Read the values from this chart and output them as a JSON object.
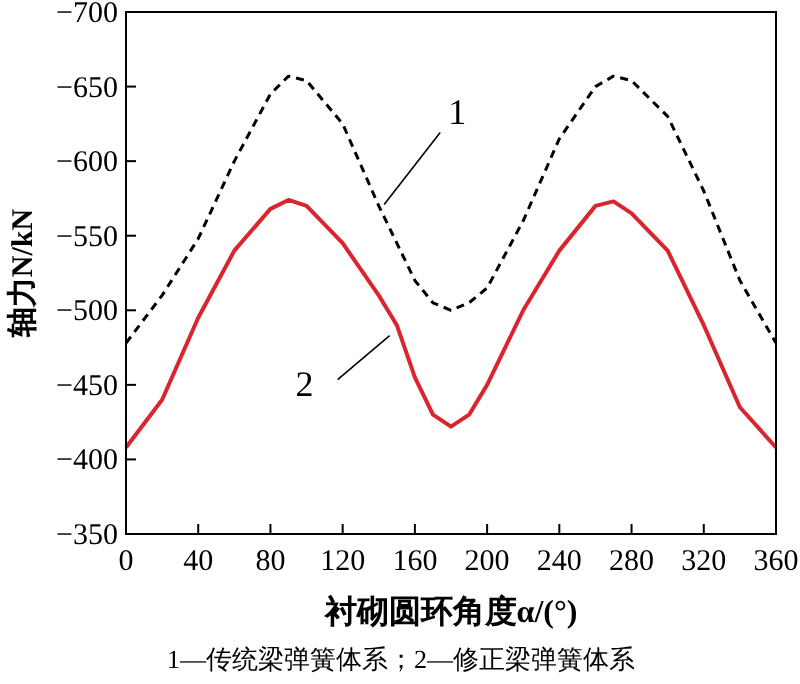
{
  "chart_data": {
    "type": "line",
    "xlabel": "衬砌圆环角度α/(°)",
    "ylabel": "轴力N/kN",
    "x": [
      0,
      20,
      40,
      60,
      80,
      90,
      100,
      120,
      140,
      150,
      160,
      170,
      180,
      190,
      200,
      220,
      240,
      260,
      270,
      280,
      300,
      320,
      340,
      360
    ],
    "series": [
      {
        "color": "#000000",
        "line_style": "dashed",
        "values": [
          -478,
          -510,
          -548,
          -600,
          -645,
          -657,
          -654,
          -625,
          -570,
          -545,
          -520,
          -505,
          -500,
          -505,
          -515,
          -560,
          -615,
          -650,
          -657,
          -654,
          -630,
          -580,
          -520,
          -478
        ]
      },
      {
        "color": "#d9262e",
        "line_style": "solid",
        "values": [
          -408,
          -440,
          -495,
          -540,
          -568,
          -574,
          -570,
          -545,
          -510,
          -490,
          -455,
          -430,
          -422,
          -430,
          -450,
          -500,
          -540,
          -570,
          -573,
          -565,
          -540,
          -490,
          -435,
          -408
        ]
      }
    ],
    "xlim": [
      0,
      360
    ],
    "xticks": [
      0,
      40,
      80,
      120,
      160,
      200,
      240,
      280,
      320,
      360
    ],
    "ylim": [
      -350,
      -700
    ],
    "yticks": [
      -700,
      -650,
      -600,
      -550,
      -500,
      -450,
      -400,
      -350
    ],
    "grid": false,
    "marker": "none",
    "annotations": [
      {
        "text": "1",
        "x": 143,
        "y": -571
      },
      {
        "text": "2",
        "x": 146,
        "y": -483
      },
      "1—传统梁弹簧体系；2—修正梁弹簧体系"
    ]
  }
}
